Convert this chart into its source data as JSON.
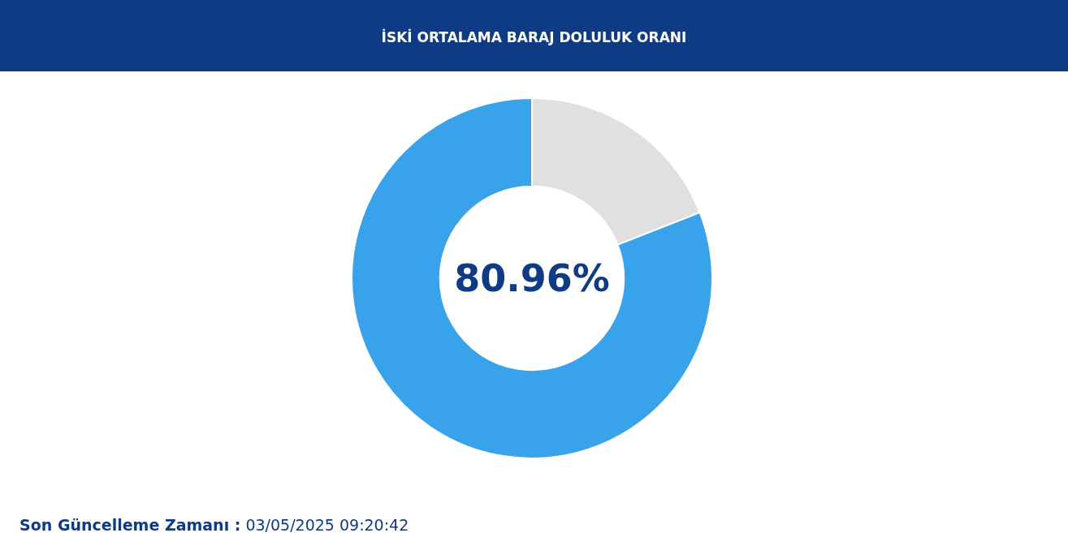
{
  "chart_data": {
    "type": "donut",
    "title": "İSKİ ORTALAMA BARAJ DOLULUK ORANI",
    "categories": [
      null,
      null
    ],
    "values": [
      80.96,
      19.04
    ],
    "colors": [
      "#38a2ea",
      "#e0e0e0"
    ],
    "value_labels": [
      "80.96%",
      null
    ],
    "annotations": [
      "Son Güncelleme Zamanı :",
      "03/05/2025 09:20:42"
    ]
  }
}
